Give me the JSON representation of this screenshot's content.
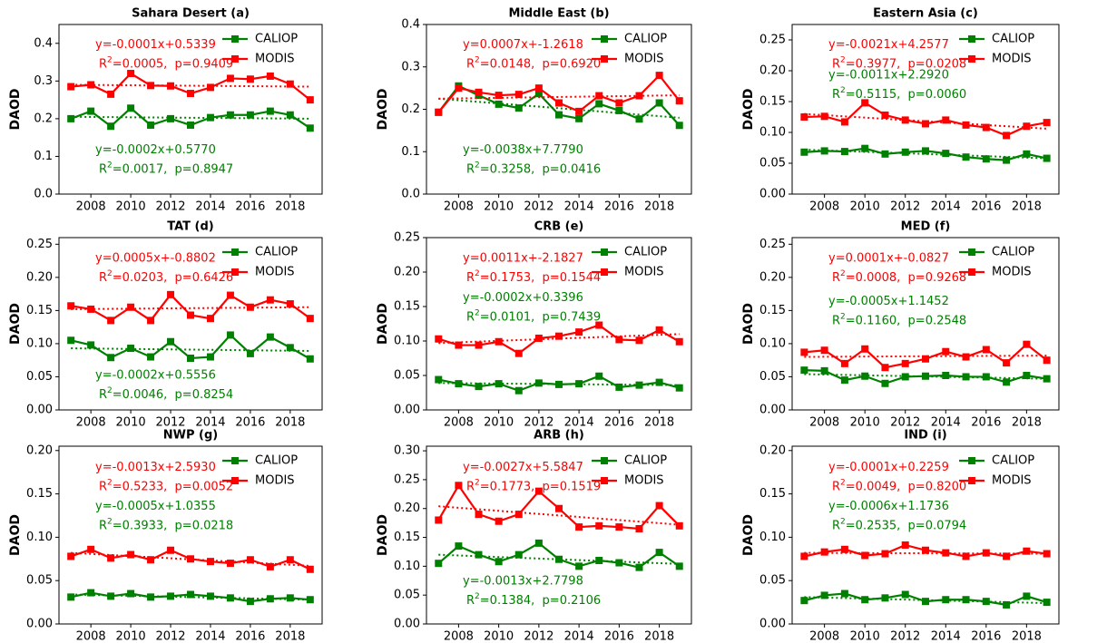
{
  "chart_data": [
    {
      "type": "line",
      "title": "Sahara Desert (a)",
      "y_label": "DAOD",
      "legend": "upper right",
      "x": [
        2007,
        2008,
        2009,
        2010,
        2011,
        2012,
        2013,
        2014,
        2015,
        2016,
        2017,
        2018,
        2019
      ],
      "xlim": [
        2006.4,
        2019.6
      ],
      "xticks": [
        2008,
        2010,
        2012,
        2014,
        2016,
        2018
      ],
      "ylim": [
        0,
        0.45
      ],
      "yticks": [
        {
          "value": 0,
          "label": "0.0"
        },
        0.1,
        0.2,
        0.3,
        0.4
      ],
      "trend_x": [
        2007,
        2019
      ],
      "series": [
        {
          "name": "CALIOP",
          "color": "#008000",
          "values": [
            0.2,
            0.22,
            0.18,
            0.228,
            0.183,
            0.2,
            0.183,
            0.203,
            0.21,
            0.21,
            0.22,
            0.21,
            0.175
          ],
          "trend": [
            0.205,
            0.2
          ],
          "equation": "y=-0.0002x+0.5770",
          "r_label": "R",
          "r_sup": "2",
          "stats": "=0.0017,  p=0.8947"
        },
        {
          "name": "MODIS",
          "color": "#ff0000",
          "values": [
            0.285,
            0.29,
            0.265,
            0.32,
            0.288,
            0.287,
            0.267,
            0.283,
            0.307,
            0.305,
            0.313,
            0.292,
            0.25
          ],
          "trend": [
            0.29,
            0.285
          ],
          "equation": "y=-0.0001x+0.5339",
          "r_label": "R",
          "r_sup": "2",
          "stats": "=0.0005,  p=0.9409"
        }
      ]
    },
    {
      "type": "line",
      "title": "Middle East (b)",
      "y_label": "DAOD",
      "legend": "upper right",
      "x": [
        2007,
        2008,
        2009,
        2010,
        2011,
        2012,
        2013,
        2014,
        2015,
        2016,
        2017,
        2018,
        2019
      ],
      "xlim": [
        2006.4,
        2019.6
      ],
      "xticks": [
        2008,
        2010,
        2012,
        2014,
        2016,
        2018
      ],
      "ylim": [
        0,
        0.4
      ],
      "yticks": [
        {
          "value": 0,
          "label": "0.0"
        },
        0.1,
        0.2,
        0.3,
        0.4
      ],
      "trend_x": [
        2007,
        2019
      ],
      "series": [
        {
          "name": "CALIOP",
          "color": "#008000",
          "values": [
            0.193,
            0.255,
            0.233,
            0.212,
            0.203,
            0.237,
            0.187,
            0.178,
            0.213,
            0.197,
            0.177,
            0.215,
            0.162
          ],
          "trend": [
            0.225,
            0.18
          ],
          "equation": "y=-0.0038x+7.7790",
          "r_label": "R",
          "r_sup": "2",
          "stats": "=0.3258,  p=0.0416"
        },
        {
          "name": "MODIS",
          "color": "#ff0000",
          "values": [
            0.193,
            0.25,
            0.24,
            0.233,
            0.235,
            0.25,
            0.215,
            0.195,
            0.232,
            0.215,
            0.232,
            0.28,
            0.22
          ],
          "trend": [
            0.225,
            0.233
          ],
          "equation": "y=0.0007x+-1.2618",
          "r_label": "R",
          "r_sup": "2",
          "stats": "=0.0148,  p=0.6920"
        }
      ]
    },
    {
      "type": "line",
      "title": "Eastern Asia (c)",
      "y_label": "DAOD",
      "legend": "upper right",
      "x": [
        2007,
        2008,
        2009,
        2010,
        2011,
        2012,
        2013,
        2014,
        2015,
        2016,
        2017,
        2018,
        2019
      ],
      "xlim": [
        2006.4,
        2019.6
      ],
      "xticks": [
        2008,
        2010,
        2012,
        2014,
        2016,
        2018
      ],
      "ylim": [
        0,
        0.275
      ],
      "yticks": [
        {
          "value": 0,
          "label": "0.00"
        },
        {
          "value": 0.05,
          "label": "0.05"
        },
        {
          "value": 0.1,
          "label": "0.10"
        },
        {
          "value": 0.15,
          "label": "0.15"
        },
        {
          "value": 0.2,
          "label": "0.20"
        },
        {
          "value": 0.25,
          "label": "0.25"
        }
      ],
      "trend_x": [
        2007,
        2019
      ],
      "series": [
        {
          "name": "CALIOP",
          "color": "#008000",
          "values": [
            0.068,
            0.07,
            0.069,
            0.074,
            0.065,
            0.068,
            0.07,
            0.066,
            0.06,
            0.057,
            0.055,
            0.065,
            0.058
          ],
          "trend": [
            0.072,
            0.058
          ],
          "equation": "y=-0.0011x+2.2920",
          "r_label": "R",
          "r_sup": "2",
          "stats": "=0.5115,  p=0.0060"
        },
        {
          "name": "MODIS",
          "color": "#ff0000",
          "values": [
            0.125,
            0.126,
            0.117,
            0.148,
            0.128,
            0.12,
            0.114,
            0.12,
            0.112,
            0.108,
            0.095,
            0.11,
            0.116
          ],
          "trend": [
            0.13,
            0.106
          ],
          "equation": "y=-0.0021x+4.2577",
          "r_label": "R",
          "r_sup": "2",
          "stats": "=0.3977,  p=0.0208"
        }
      ]
    },
    {
      "type": "line",
      "title": "TAT (d)",
      "y_label": "DAOD",
      "legend": "upper right",
      "x": [
        2007,
        2008,
        2009,
        2010,
        2011,
        2012,
        2013,
        2014,
        2015,
        2016,
        2017,
        2018,
        2019
      ],
      "xlim": [
        2006.4,
        2019.6
      ],
      "xticks": [
        2008,
        2010,
        2012,
        2014,
        2016,
        2018
      ],
      "ylim": [
        0,
        0.26
      ],
      "yticks": [
        {
          "value": 0,
          "label": "0.00"
        },
        {
          "value": 0.05,
          "label": "0.05"
        },
        {
          "value": 0.1,
          "label": "0.10"
        },
        {
          "value": 0.15,
          "label": "0.15"
        },
        {
          "value": 0.2,
          "label": "0.20"
        },
        {
          "value": 0.25,
          "label": "0.25"
        }
      ],
      "trend_x": [
        2007,
        2019
      ],
      "series": [
        {
          "name": "CALIOP",
          "color": "#008000",
          "values": [
            0.105,
            0.098,
            0.079,
            0.093,
            0.08,
            0.103,
            0.078,
            0.08,
            0.113,
            0.085,
            0.11,
            0.094,
            0.077
          ],
          "trend": [
            0.093,
            0.089
          ],
          "equation": "y=-0.0002x+0.5556",
          "r_label": "R",
          "r_sup": "2",
          "stats": "=0.0046,  p=0.8254"
        },
        {
          "name": "MODIS",
          "color": "#ff0000",
          "values": [
            0.157,
            0.152,
            0.135,
            0.155,
            0.135,
            0.174,
            0.143,
            0.138,
            0.173,
            0.155,
            0.166,
            0.16,
            0.138
          ],
          "trend": [
            0.152,
            0.155
          ],
          "equation": "y=0.0005x+-0.8802",
          "r_label": "R",
          "r_sup": "2",
          "stats": "=0.0203,  p=0.6426"
        }
      ]
    },
    {
      "type": "line",
      "title": "CRB (e)",
      "y_label": "DAOD",
      "legend": "upper right",
      "x": [
        2007,
        2008,
        2009,
        2010,
        2011,
        2012,
        2013,
        2014,
        2015,
        2016,
        2017,
        2018,
        2019
      ],
      "xlim": [
        2006.4,
        2019.6
      ],
      "xticks": [
        2008,
        2010,
        2012,
        2014,
        2016,
        2018
      ],
      "ylim": [
        0,
        0.25
      ],
      "yticks": [
        {
          "value": 0,
          "label": "0.00"
        },
        {
          "value": 0.05,
          "label": "0.05"
        },
        {
          "value": 0.1,
          "label": "0.10"
        },
        {
          "value": 0.15,
          "label": "0.15"
        },
        {
          "value": 0.2,
          "label": "0.20"
        },
        {
          "value": 0.25,
          "label": "0.25"
        }
      ],
      "trend_x": [
        2007,
        2019
      ],
      "series": [
        {
          "name": "CALIOP",
          "color": "#008000",
          "values": [
            0.044,
            0.038,
            0.034,
            0.038,
            0.028,
            0.039,
            0.037,
            0.038,
            0.049,
            0.033,
            0.036,
            0.04,
            0.032
          ],
          "trend": [
            0.039,
            0.036
          ],
          "equation": "y=-0.0002x+0.3396",
          "r_label": "R",
          "r_sup": "2",
          "stats": "=0.0101,  p=0.7439"
        },
        {
          "name": "MODIS",
          "color": "#ff0000",
          "values": [
            0.103,
            0.094,
            0.094,
            0.099,
            0.082,
            0.104,
            0.107,
            0.113,
            0.123,
            0.102,
            0.101,
            0.116,
            0.099
          ],
          "trend": [
            0.097,
            0.11
          ],
          "equation": "y=0.0011x+-2.1827",
          "r_label": "R",
          "r_sup": "2",
          "stats": "=0.1753,  p=0.1544"
        }
      ]
    },
    {
      "type": "line",
      "title": "MED (f)",
      "y_label": "DAOD",
      "legend": "upper right",
      "x": [
        2007,
        2008,
        2009,
        2010,
        2011,
        2012,
        2013,
        2014,
        2015,
        2016,
        2017,
        2018,
        2019
      ],
      "xlim": [
        2006.4,
        2019.6
      ],
      "xticks": [
        2008,
        2010,
        2012,
        2014,
        2016,
        2018
      ],
      "ylim": [
        0,
        0.26
      ],
      "yticks": [
        {
          "value": 0,
          "label": "0.00"
        },
        {
          "value": 0.05,
          "label": "0.05"
        },
        {
          "value": 0.1,
          "label": "0.10"
        },
        {
          "value": 0.15,
          "label": "0.15"
        },
        {
          "value": 0.2,
          "label": "0.20"
        },
        {
          "value": 0.25,
          "label": "0.25"
        }
      ],
      "trend_x": [
        2007,
        2019
      ],
      "series": [
        {
          "name": "CALIOP",
          "color": "#008000",
          "values": [
            0.06,
            0.059,
            0.045,
            0.051,
            0.04,
            0.05,
            0.051,
            0.052,
            0.05,
            0.05,
            0.042,
            0.052,
            0.047
          ],
          "trend": [
            0.054,
            0.047
          ],
          "equation": "y=-0.0005x+1.1452",
          "r_label": "R",
          "r_sup": "2",
          "stats": "=0.1160,  p=0.2548"
        },
        {
          "name": "MODIS",
          "color": "#ff0000",
          "values": [
            0.087,
            0.09,
            0.07,
            0.092,
            0.064,
            0.07,
            0.077,
            0.088,
            0.08,
            0.091,
            0.071,
            0.099,
            0.075
          ],
          "trend": [
            0.08,
            0.082
          ],
          "equation": "y=0.0001x+-0.0827",
          "r_label": "R",
          "r_sup": "2",
          "stats": "=0.0008,  p=0.9268"
        }
      ]
    },
    {
      "type": "line",
      "title": "NWP (g)",
      "y_label": "DAOD",
      "legend": "upper right",
      "x": [
        2007,
        2008,
        2009,
        2010,
        2011,
        2012,
        2013,
        2014,
        2015,
        2016,
        2017,
        2018,
        2019
      ],
      "xlim": [
        2006.4,
        2019.6
      ],
      "xticks": [
        2008,
        2010,
        2012,
        2014,
        2016,
        2018
      ],
      "ylim": [
        0,
        0.205
      ],
      "yticks": [
        {
          "value": 0,
          "label": "0.00"
        },
        {
          "value": 0.05,
          "label": "0.05"
        },
        {
          "value": 0.1,
          "label": "0.10"
        },
        {
          "value": 0.15,
          "label": "0.15"
        },
        {
          "value": 0.2,
          "label": "0.20"
        }
      ],
      "trend_x": [
        2007,
        2019
      ],
      "series": [
        {
          "name": "CALIOP",
          "color": "#008000",
          "values": [
            0.031,
            0.036,
            0.032,
            0.035,
            0.031,
            0.032,
            0.034,
            0.032,
            0.03,
            0.026,
            0.029,
            0.03,
            0.028
          ],
          "trend": [
            0.034,
            0.028
          ],
          "equation": "y=-0.0005x+1.0355",
          "r_label": "R",
          "r_sup": "2",
          "stats": "=0.3933,  p=0.0218"
        },
        {
          "name": "MODIS",
          "color": "#ff0000",
          "values": [
            0.078,
            0.086,
            0.076,
            0.08,
            0.074,
            0.085,
            0.075,
            0.072,
            0.07,
            0.074,
            0.066,
            0.074,
            0.063
          ],
          "trend": [
            0.082,
            0.067
          ],
          "equation": "y=-0.0013x+2.5930",
          "r_label": "R",
          "r_sup": "2",
          "stats": "=0.5233,  p=0.0052"
        }
      ]
    },
    {
      "type": "line",
      "title": "ARB (h)",
      "y_label": "DAOD",
      "legend": "upper right",
      "x": [
        2007,
        2008,
        2009,
        2010,
        2011,
        2012,
        2013,
        2014,
        2015,
        2016,
        2017,
        2018,
        2019
      ],
      "xlim": [
        2006.4,
        2019.6
      ],
      "xticks": [
        2008,
        2010,
        2012,
        2014,
        2016,
        2018
      ],
      "ylim": [
        0,
        0.308
      ],
      "yticks": [
        {
          "value": 0,
          "label": "0.00"
        },
        {
          "value": 0.05,
          "label": "0.05"
        },
        {
          "value": 0.1,
          "label": "0.10"
        },
        {
          "value": 0.15,
          "label": "0.15"
        },
        {
          "value": 0.2,
          "label": "0.20"
        },
        {
          "value": 0.25,
          "label": "0.25"
        },
        {
          "value": 0.3,
          "label": "0.30"
        }
      ],
      "trend_x": [
        2007,
        2019
      ],
      "series": [
        {
          "name": "CALIOP",
          "color": "#008000",
          "values": [
            0.105,
            0.135,
            0.12,
            0.108,
            0.12,
            0.14,
            0.112,
            0.1,
            0.11,
            0.106,
            0.098,
            0.124,
            0.1
          ],
          "trend": [
            0.12,
            0.104
          ],
          "equation": "y=-0.0013x+2.7798",
          "r_label": "R",
          "r_sup": "2",
          "stats": "=0.1384,  p=0.2106"
        },
        {
          "name": "MODIS",
          "color": "#ff0000",
          "values": [
            0.18,
            0.24,
            0.19,
            0.178,
            0.19,
            0.23,
            0.2,
            0.168,
            0.17,
            0.168,
            0.165,
            0.205,
            0.17
          ],
          "trend": [
            0.204,
            0.172
          ],
          "equation": "y=-0.0027x+5.5847",
          "r_label": "R",
          "r_sup": "2",
          "stats": "=0.1773,  p=0.1519"
        }
      ]
    },
    {
      "type": "line",
      "title": "IND (i)",
      "y_label": "DAOD",
      "legend": "upper right",
      "x": [
        2007,
        2008,
        2009,
        2010,
        2011,
        2012,
        2013,
        2014,
        2015,
        2016,
        2017,
        2018,
        2019
      ],
      "xlim": [
        2006.4,
        2019.6
      ],
      "xticks": [
        2008,
        2010,
        2012,
        2014,
        2016,
        2018
      ],
      "ylim": [
        0,
        0.205
      ],
      "yticks": [
        {
          "value": 0,
          "label": "0.00"
        },
        {
          "value": 0.05,
          "label": "0.05"
        },
        {
          "value": 0.1,
          "label": "0.10"
        },
        {
          "value": 0.15,
          "label": "0.15"
        },
        {
          "value": 0.2,
          "label": "0.20"
        }
      ],
      "trend_x": [
        2007,
        2019
      ],
      "series": [
        {
          "name": "CALIOP",
          "color": "#008000",
          "values": [
            0.027,
            0.033,
            0.035,
            0.028,
            0.03,
            0.034,
            0.026,
            0.028,
            0.028,
            0.026,
            0.022,
            0.032,
            0.025
          ],
          "trend": [
            0.031,
            0.024
          ],
          "equation": "y=-0.0006x+1.1736",
          "r_label": "R",
          "r_sup": "2",
          "stats": "=0.2535,  p=0.0794"
        },
        {
          "name": "MODIS",
          "color": "#ff0000",
          "values": [
            0.078,
            0.083,
            0.086,
            0.079,
            0.081,
            0.091,
            0.085,
            0.082,
            0.078,
            0.082,
            0.078,
            0.084,
            0.081
          ],
          "trend": [
            0.082,
            0.081
          ],
          "equation": "y=-0.0001x+0.2259",
          "r_label": "R",
          "r_sup": "2",
          "stats": "=0.0049,  p=0.8200"
        }
      ]
    }
  ]
}
